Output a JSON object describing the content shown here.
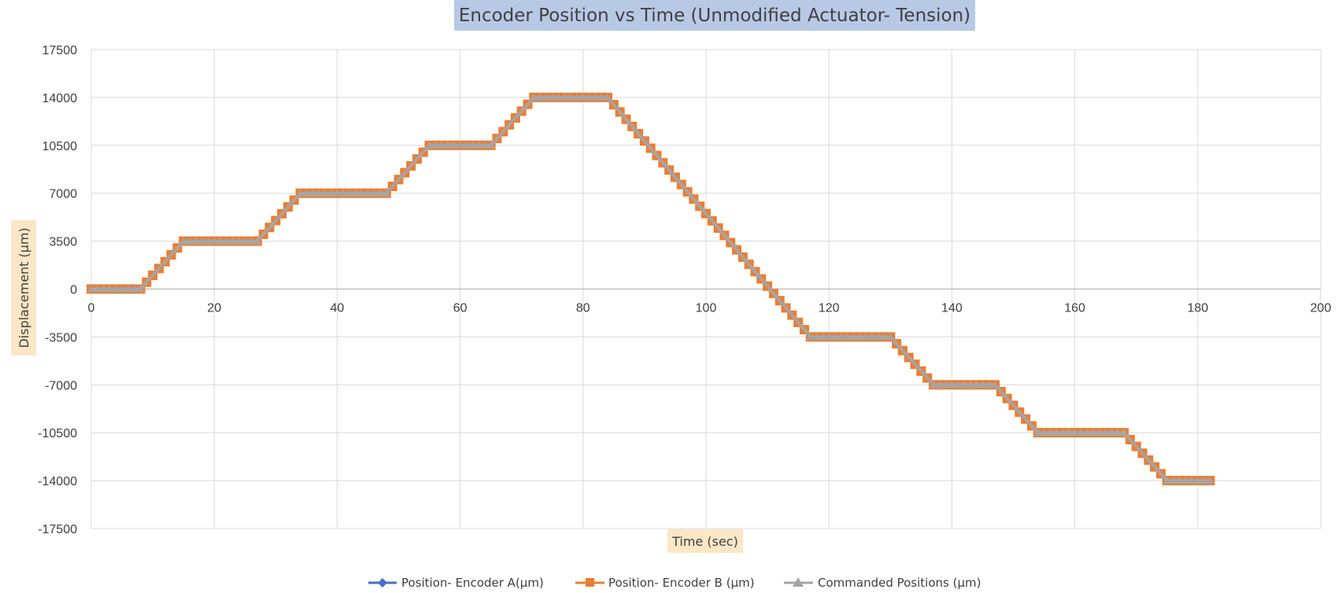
{
  "chart_data": {
    "type": "scatter",
    "title": "Encoder Position vs Time (Unmodified Actuator- Tension)",
    "xlabel": "Time (sec)",
    "ylabel": "Displacement (µm)",
    "xlim": [
      0,
      200
    ],
    "ylim": [
      -17500,
      17500
    ],
    "x_ticks": [
      0,
      20,
      40,
      60,
      80,
      100,
      120,
      140,
      160,
      180,
      200
    ],
    "y_ticks": [
      17500,
      14000,
      10500,
      7000,
      3500,
      0,
      -3500,
      -7000,
      -10500,
      -14000,
      -17500
    ],
    "grid": true,
    "legend_position": "bottom",
    "series": [
      {
        "name": "Position- Encoder A(µm)",
        "color": "#4472c4",
        "marker": "diamond",
        "x": [
          0,
          7,
          8,
          15,
          26,
          27,
          34,
          47,
          48,
          55,
          64,
          65,
          72,
          83,
          84,
          117,
          118,
          129,
          130,
          137,
          146,
          147,
          154,
          167,
          168,
          175,
          182
        ],
        "y": [
          0,
          0,
          0,
          3500,
          3500,
          3500,
          7000,
          7000,
          7000,
          10500,
          10500,
          10500,
          14000,
          14000,
          14000,
          -3500,
          -3500,
          -3500,
          -3500,
          -7000,
          -7000,
          -7000,
          -10500,
          -10500,
          -10500,
          -14000,
          -14000
        ]
      },
      {
        "name": "Position- Encoder B (µm)",
        "color": "#ed7d31",
        "marker": "square",
        "x": [
          0,
          7,
          8,
          15,
          26,
          27,
          34,
          47,
          48,
          55,
          64,
          65,
          72,
          83,
          84,
          117,
          118,
          129,
          130,
          137,
          146,
          147,
          154,
          167,
          168,
          175,
          182
        ],
        "y": [
          0,
          0,
          0,
          3500,
          3500,
          3500,
          7000,
          7000,
          7000,
          10500,
          10500,
          10500,
          14000,
          14000,
          14000,
          -3500,
          -3500,
          -3500,
          -3500,
          -7000,
          -7000,
          -7000,
          -10500,
          -10500,
          -10500,
          -14000,
          -14000
        ]
      },
      {
        "name": "Commanded Positions (µm)",
        "color": "#a5a5a5",
        "marker": "triangle",
        "x": [
          0,
          7,
          8,
          15,
          26,
          27,
          34,
          47,
          48,
          55,
          64,
          65,
          72,
          83,
          84,
          117,
          118,
          129,
          130,
          137,
          146,
          147,
          154,
          167,
          168,
          175,
          182
        ],
        "y": [
          0,
          0,
          0,
          3500,
          3500,
          3500,
          7000,
          7000,
          7000,
          10500,
          10500,
          10500,
          14000,
          14000,
          14000,
          -3500,
          -3500,
          -3500,
          -3500,
          -7000,
          -7000,
          -7000,
          -10500,
          -10500,
          -10500,
          -14000,
          -14000
        ]
      }
    ]
  }
}
